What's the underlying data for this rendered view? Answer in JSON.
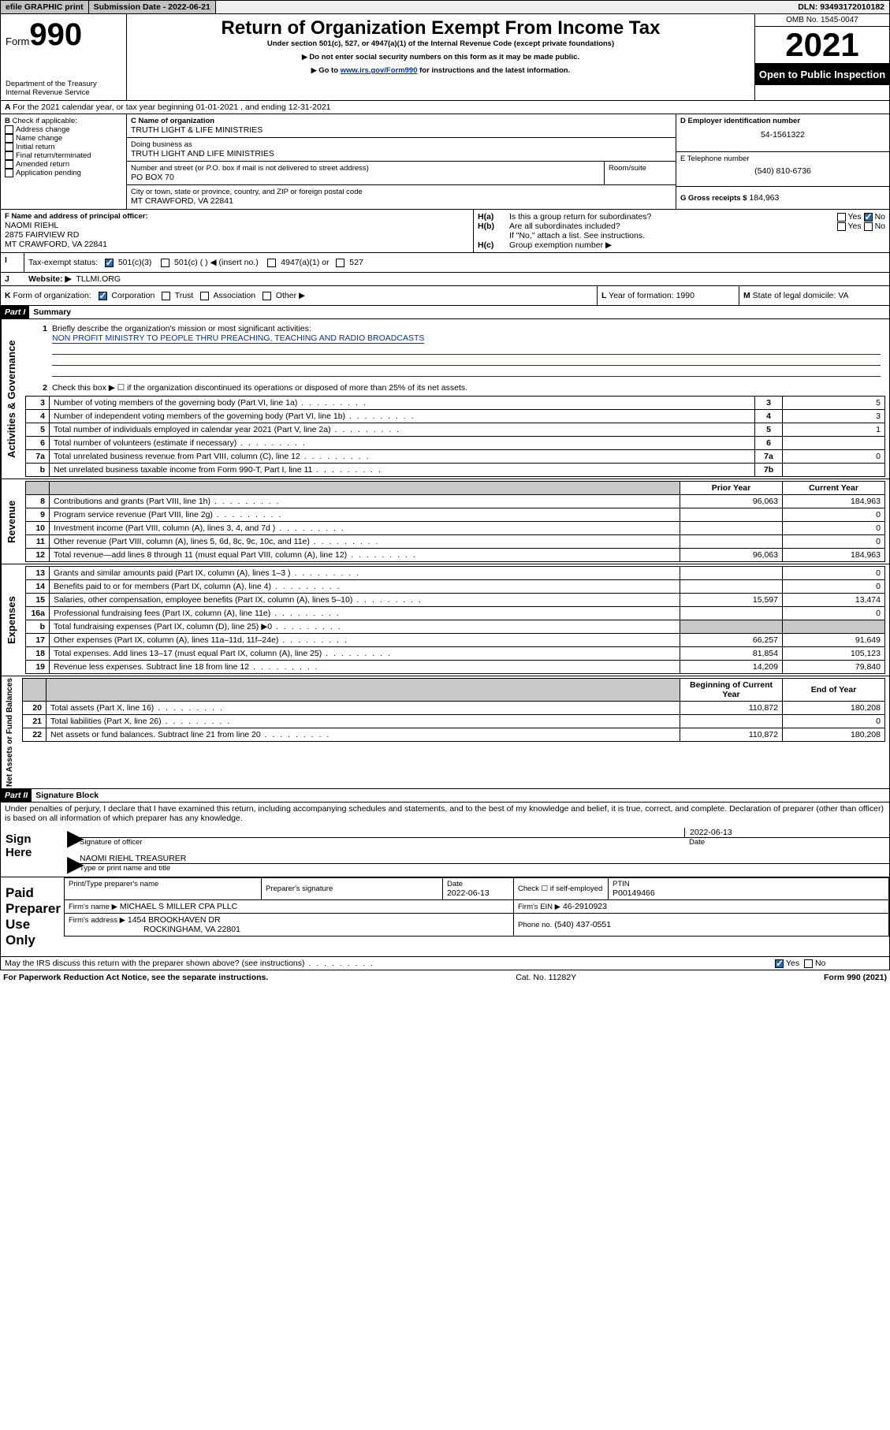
{
  "topbar": {
    "efile": "efile GRAPHIC print",
    "submission_label": "Submission Date - 2022-06-21",
    "dln": "DLN: 93493172010182"
  },
  "header": {
    "form_label": "Form",
    "form_number": "990",
    "dept1": "Department of the Treasury",
    "dept2": "Internal Revenue Service",
    "title": "Return of Organization Exempt From Income Tax",
    "subtitle": "Under section 501(c), 527, or 4947(a)(1) of the Internal Revenue Code (except private foundations)",
    "note1": "Do not enter social security numbers on this form as it may be made public.",
    "note2_pre": "Go to ",
    "note2_link": "www.irs.gov/Form990",
    "note2_post": " for instructions and the latest information.",
    "omb": "OMB No. 1545-0047",
    "year": "2021",
    "open": "Open to Public Inspection"
  },
  "A": {
    "text": "For the 2021 calendar year, or tax year beginning 01-01-2021   , and ending 12-31-2021"
  },
  "B": {
    "label": "Check if applicable:",
    "items": [
      "Address change",
      "Name change",
      "Initial return",
      "Final return/terminated",
      "Amended return",
      "Application pending"
    ]
  },
  "C": {
    "name_label": "C Name of organization",
    "name": "TRUTH LIGHT & LIFE MINISTRIES",
    "dba_label": "Doing business as",
    "dba": "TRUTH LIGHT AND LIFE MINISTRIES",
    "street_label": "Number and street (or P.O. box if mail is not delivered to street address)",
    "room_label": "Room/suite",
    "street": "PO BOX 70",
    "city_label": "City or town, state or province, country, and ZIP or foreign postal code",
    "city": "MT CRAWFORD, VA  22841"
  },
  "D": {
    "label": "D Employer identification number",
    "value": "54-1561322"
  },
  "E": {
    "label": "E Telephone number",
    "value": "(540) 810-6736"
  },
  "G": {
    "label": "G Gross receipts $",
    "value": "184,963"
  },
  "F": {
    "label": "F  Name and address of principal officer:",
    "name": "NAOMI RIEHL",
    "street": "2875 FAIRVIEW RD",
    "city": "MT CRAWFORD, VA  22841"
  },
  "H": {
    "a": "Is this a group return for subordinates?",
    "b": "Are all subordinates included?",
    "note": "If \"No,\" attach a list. See instructions.",
    "c": "Group exemption number ▶"
  },
  "I": {
    "label": "Tax-exempt status:",
    "opts": [
      "501(c)(3)",
      "501(c) (   ) ◀ (insert no.)",
      "4947(a)(1) or",
      "527"
    ]
  },
  "J": {
    "label": "Website: ▶",
    "value": "TLLMI.ORG"
  },
  "K": {
    "label": "Form of organization:",
    "opts": [
      "Corporation",
      "Trust",
      "Association",
      "Other ▶"
    ]
  },
  "L": {
    "label": "Year of formation:",
    "value": "1990"
  },
  "M": {
    "label": "State of legal domicile:",
    "value": "VA"
  },
  "part1": {
    "label": "Part I",
    "title": "Summary",
    "l1_label": "Briefly describe the organization's mission or most significant activities:",
    "l1_value": "NON PROFIT MINISTRY TO PEOPLE THRU PREACHING, TEACHING AND RADIO BROADCASTS",
    "l2": "Check this box ▶ ☐  if the organization discontinued its operations or disposed of more than 25% of its net assets.",
    "lines_gov": [
      {
        "n": "3",
        "t": "Number of voting members of the governing body (Part VI, line 1a)",
        "rn": "3",
        "v": "5"
      },
      {
        "n": "4",
        "t": "Number of independent voting members of the governing body (Part VI, line 1b)",
        "rn": "4",
        "v": "3"
      },
      {
        "n": "5",
        "t": "Total number of individuals employed in calendar year 2021 (Part V, line 2a)",
        "rn": "5",
        "v": "1"
      },
      {
        "n": "6",
        "t": "Total number of volunteers (estimate if necessary)",
        "rn": "6",
        "v": ""
      },
      {
        "n": "7a",
        "t": "Total unrelated business revenue from Part VIII, column (C), line 12",
        "rn": "7a",
        "v": "0"
      },
      {
        "n": "b",
        "t": "Net unrelated business taxable income from Form 990-T, Part I, line 11",
        "rn": "7b",
        "v": ""
      }
    ],
    "col_prior": "Prior Year",
    "col_current": "Current Year",
    "lines_rev": [
      {
        "n": "8",
        "t": "Contributions and grants (Part VIII, line 1h)",
        "p": "96,063",
        "c": "184,963"
      },
      {
        "n": "9",
        "t": "Program service revenue (Part VIII, line 2g)",
        "p": "",
        "c": "0"
      },
      {
        "n": "10",
        "t": "Investment income (Part VIII, column (A), lines 3, 4, and 7d )",
        "p": "",
        "c": "0"
      },
      {
        "n": "11",
        "t": "Other revenue (Part VIII, column (A), lines 5, 6d, 8c, 9c, 10c, and 11e)",
        "p": "",
        "c": "0"
      },
      {
        "n": "12",
        "t": "Total revenue—add lines 8 through 11 (must equal Part VIII, column (A), line 12)",
        "p": "96,063",
        "c": "184,963"
      }
    ],
    "lines_exp": [
      {
        "n": "13",
        "t": "Grants and similar amounts paid (Part IX, column (A), lines 1–3 )",
        "p": "",
        "c": "0"
      },
      {
        "n": "14",
        "t": "Benefits paid to or for members (Part IX, column (A), line 4)",
        "p": "",
        "c": "0"
      },
      {
        "n": "15",
        "t": "Salaries, other compensation, employee benefits (Part IX, column (A), lines 5–10)",
        "p": "15,597",
        "c": "13,474"
      },
      {
        "n": "16a",
        "t": "Professional fundraising fees (Part IX, column (A), line 11e)",
        "p": "",
        "c": "0"
      },
      {
        "n": "b",
        "t": "Total fundraising expenses (Part IX, column (D), line 25) ▶0",
        "p": "SHADE",
        "c": "SHADE"
      },
      {
        "n": "17",
        "t": "Other expenses (Part IX, column (A), lines 11a–11d, 11f–24e)",
        "p": "66,257",
        "c": "91,649"
      },
      {
        "n": "18",
        "t": "Total expenses. Add lines 13–17 (must equal Part IX, column (A), line 25)",
        "p": "81,854",
        "c": "105,123"
      },
      {
        "n": "19",
        "t": "Revenue less expenses. Subtract line 18 from line 12",
        "p": "14,209",
        "c": "79,840"
      }
    ],
    "col_begin": "Beginning of Current Year",
    "col_end": "End of Year",
    "lines_net": [
      {
        "n": "20",
        "t": "Total assets (Part X, line 16)",
        "p": "110,872",
        "c": "180,208"
      },
      {
        "n": "21",
        "t": "Total liabilities (Part X, line 26)",
        "p": "",
        "c": "0"
      },
      {
        "n": "22",
        "t": "Net assets or fund balances. Subtract line 21 from line 20",
        "p": "110,872",
        "c": "180,208"
      }
    ],
    "vlabels": {
      "gov": "Activities & Governance",
      "rev": "Revenue",
      "exp": "Expenses",
      "net": "Net Assets or Fund Balances"
    }
  },
  "part2": {
    "label": "Part II",
    "title": "Signature Block",
    "penalty": "Under penalties of perjury, I declare that I have examined this return, including accompanying schedules and statements, and to the best of my knowledge and belief, it is true, correct, and complete. Declaration of preparer (other than officer) is based on all information of which preparer has any knowledge.",
    "sign_here": "Sign Here",
    "sig_officer": "Signature of officer",
    "sig_date": "2022-06-13",
    "date_label": "Date",
    "officer_name": "NAOMI RIEHL  TREASURER",
    "officer_label": "Type or print name and title",
    "paid": "Paid Preparer Use Only",
    "prep_name_label": "Print/Type preparer's name",
    "prep_sig_label": "Preparer's signature",
    "prep_date": "2022-06-13",
    "check_self": "Check ☐ if self-employed",
    "ptin_label": "PTIN",
    "ptin": "P00149466",
    "firm_name_label": "Firm's name    ▶",
    "firm_name": "MICHAEL S MILLER CPA PLLC",
    "firm_ein_label": "Firm's EIN ▶",
    "firm_ein": "46-2910923",
    "firm_addr_label": "Firm's address ▶",
    "firm_addr1": "1454 BROOKHAVEN DR",
    "firm_addr2": "ROCKINGHAM, VA  22801",
    "phone_label": "Phone no.",
    "phone": "(540) 437-0551",
    "discuss": "May the IRS discuss this return with the preparer shown above? (see instructions)"
  },
  "footer": {
    "left": "For Paperwork Reduction Act Notice, see the separate instructions.",
    "center": "Cat. No. 11282Y",
    "right": "Form 990 (2021)"
  }
}
